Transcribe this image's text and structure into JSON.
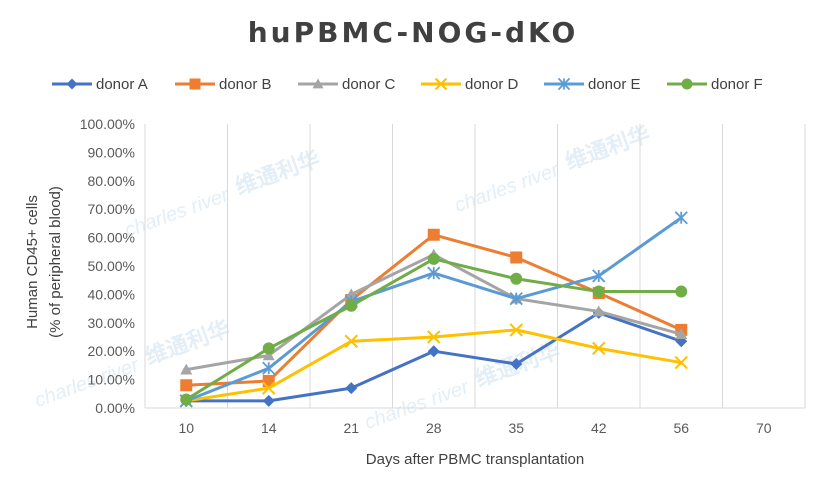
{
  "chart_data": {
    "type": "line",
    "title": "huPBMC-NOG-dKO",
    "xlabel": "Days  after PBMC transplantation",
    "ylabel": "Human CD45+ cells",
    "ylabel2": "(% of  peripheral blood)",
    "categories": [
      "10",
      "14",
      "21",
      "28",
      "35",
      "42",
      "56",
      "70"
    ],
    "ylim": [
      0,
      100
    ],
    "yticks": [
      "0.00%",
      "10.00%",
      "20.00%",
      "30.00%",
      "40.00%",
      "50.00%",
      "60.00%",
      "70.00%",
      "80.00%",
      "90.00%",
      "100.00%"
    ],
    "grid": "vertical",
    "legend": "top",
    "watermark": [
      "charles river",
      "维通利华"
    ],
    "series": [
      {
        "name": "donor A",
        "color": "#4472C4",
        "marker": "diamond",
        "values": [
          2.5,
          2.5,
          7,
          20,
          15.5,
          33.5,
          23.5,
          null
        ]
      },
      {
        "name": "donor B",
        "color": "#ED7D31",
        "marker": "square",
        "values": [
          8,
          9.5,
          38,
          61,
          53,
          40.5,
          27.5,
          null
        ]
      },
      {
        "name": "donor C",
        "color": "#A5A5A5",
        "marker": "triangle",
        "values": [
          13.5,
          18.5,
          40,
          54,
          38.5,
          34,
          26,
          null
        ]
      },
      {
        "name": "donor D",
        "color": "#FFC000",
        "marker": "x",
        "values": [
          2.5,
          7,
          23.5,
          25,
          27.5,
          21,
          16,
          null
        ]
      },
      {
        "name": "donor E",
        "color": "#5B9BD5",
        "marker": "star",
        "values": [
          2.5,
          14,
          37.5,
          47.5,
          38.5,
          46.5,
          67,
          null
        ]
      },
      {
        "name": "donor F",
        "color": "#70AD47",
        "marker": "circle",
        "values": [
          3,
          21,
          36,
          52.5,
          45.5,
          41,
          41,
          null
        ]
      }
    ]
  }
}
